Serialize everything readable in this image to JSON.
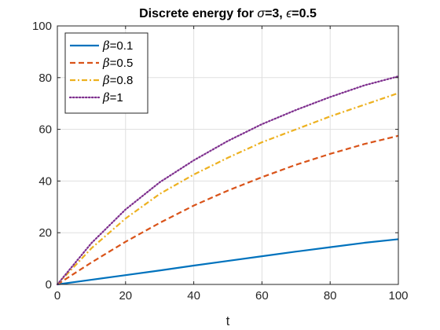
{
  "chart_data": {
    "type": "line",
    "title": {
      "prefix": "Discrete energy for ",
      "sym1": "σ",
      "mid": "=3, ",
      "sym2": "ϵ",
      "suffix": "=0.5"
    },
    "xlabel": "t",
    "ylabel": "",
    "xlim": [
      0,
      100
    ],
    "ylim": [
      0,
      100
    ],
    "xticks": [
      0,
      20,
      40,
      60,
      80,
      100
    ],
    "yticks": [
      0,
      20,
      40,
      60,
      80,
      100
    ],
    "grid": true,
    "legend_position": "top-left",
    "x": [
      0,
      10,
      20,
      30,
      40,
      50,
      60,
      70,
      80,
      90,
      100
    ],
    "series": [
      {
        "name": "β=0.1",
        "label_symbol": "β",
        "label_value": "=0.1",
        "color": "#0072BD",
        "dash": "solid",
        "values": [
          0,
          1.8,
          3.6,
          5.4,
          7.3,
          9.1,
          10.9,
          12.7,
          14.4,
          16.1,
          17.5
        ]
      },
      {
        "name": "β=0.5",
        "label_symbol": "β",
        "label_value": "=0.5",
        "color": "#D95319",
        "dash": "dashed",
        "values": [
          0,
          8.5,
          16.5,
          23.8,
          30.5,
          36.3,
          41.5,
          46.3,
          50.5,
          54.3,
          57.5
        ]
      },
      {
        "name": "β=0.8",
        "label_symbol": "β",
        "label_value": "=0.8",
        "color": "#EDB120",
        "dash": "dashdot",
        "values": [
          0,
          14,
          25.5,
          35,
          42.5,
          49,
          55,
          60,
          65,
          69.5,
          74
        ]
      },
      {
        "name": "β=1",
        "label_symbol": "β",
        "label_value": "=1",
        "color": "#7E2F8E",
        "dash": "dotted",
        "values": [
          0,
          16,
          29,
          39.5,
          48,
          55.5,
          62,
          67.5,
          72.5,
          77,
          80.5
        ]
      }
    ]
  }
}
